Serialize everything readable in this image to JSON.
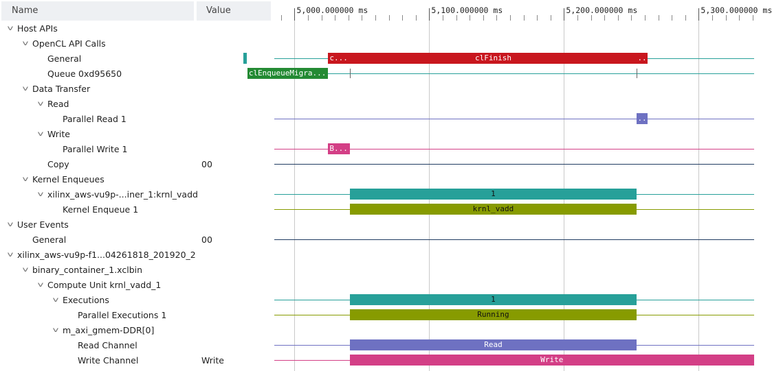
{
  "header": {
    "name_label": "Name",
    "value_label": "Value"
  },
  "colors": {
    "red": "#c8161e",
    "green": "#238a33",
    "teal": "#27a099",
    "olive": "#879b00",
    "blue": "#6e71c2",
    "pink": "#d33f86",
    "navy": "#1f3a60",
    "grid": "#c9c9c9"
  },
  "tree": [
    {
      "label": "Host APIs",
      "value": "",
      "expanded": true
    },
    {
      "label": "OpenCL API Calls",
      "value": "",
      "expanded": true
    },
    {
      "label": "General",
      "value": ""
    },
    {
      "label": "Queue 0xd95650",
      "value": ""
    },
    {
      "label": "Data Transfer",
      "value": "",
      "expanded": true
    },
    {
      "label": "Read",
      "value": "",
      "expanded": true
    },
    {
      "label": "Parallel Read 1",
      "value": ""
    },
    {
      "label": "Write",
      "value": "",
      "expanded": true
    },
    {
      "label": "Parallel Write 1",
      "value": ""
    },
    {
      "label": "Copy",
      "value": "00"
    },
    {
      "label": "Kernel Enqueues",
      "value": "",
      "expanded": true
    },
    {
      "label": "xilinx_aws-vu9p-...iner_1:krnl_vadd",
      "value": "",
      "expanded": true
    },
    {
      "label": "Kernel Enqueue 1",
      "value": ""
    },
    {
      "label": "User Events",
      "value": "",
      "expanded": true
    },
    {
      "label": "General",
      "value": "00"
    },
    {
      "label": "xilinx_aws-vu9p-f1...04261818_201920_2",
      "value": "",
      "expanded": true
    },
    {
      "label": "binary_container_1.xclbin",
      "value": "",
      "expanded": true
    },
    {
      "label": "Compute Unit krnl_vadd_1",
      "value": "",
      "expanded": true
    },
    {
      "label": "Executions",
      "value": "",
      "expanded": true
    },
    {
      "label": "Parallel Executions 1",
      "value": ""
    },
    {
      "label": "m_axi_gmem-DDR[0]",
      "value": "",
      "expanded": true
    },
    {
      "label": "Read Channel",
      "value": ""
    },
    {
      "label": "Write Channel",
      "value": "Write"
    }
  ],
  "timeline": {
    "ticks": [
      "5,000.000000 ms",
      "5,100.000000 ms",
      "5,200.000000 ms",
      "5,300.000000 ms"
    ],
    "tracks": [
      {
        "row": 2,
        "color": "teal"
      },
      {
        "row": 3,
        "color": "teal"
      },
      {
        "row": 6,
        "color": "blue"
      },
      {
        "row": 8,
        "color": "pink"
      },
      {
        "row": 9,
        "color": "navy"
      },
      {
        "row": 11,
        "color": "teal"
      },
      {
        "row": 12,
        "color": "olive"
      },
      {
        "row": 14,
        "color": "navy"
      },
      {
        "row": 18,
        "color": "teal"
      },
      {
        "row": 19,
        "color": "olive"
      },
      {
        "row": 21,
        "color": "blue"
      },
      {
        "row": 22,
        "color": "pink"
      }
    ],
    "events": [
      {
        "name": "general-api-small-bar",
        "row": 2,
        "start": 4962,
        "end": 4964.5,
        "color": "teal",
        "label": ""
      },
      {
        "name": "general-api-short-bar",
        "row": 2,
        "start": 5025,
        "end": 5041,
        "color": "red",
        "label": "c...",
        "align": "left"
      },
      {
        "name": "clfinish-bar",
        "row": 2,
        "start": 5041,
        "end": 5254,
        "color": "red",
        "label": "clFinish"
      },
      {
        "name": "general-api-end-bar",
        "row": 2,
        "start": 5254,
        "end": 5262,
        "color": "red",
        "label": ".."
      },
      {
        "name": "clenqueuemigrate-bar",
        "row": 3,
        "start": 4965,
        "end": 5025,
        "color": "green",
        "label": "clEnqueueMigra...",
        "align": "left"
      },
      {
        "name": "parallel-read-bar",
        "row": 6,
        "start": 5254,
        "end": 5262,
        "color": "blue",
        "label": ".."
      },
      {
        "name": "parallel-write-bar",
        "row": 8,
        "start": 5025,
        "end": 5041,
        "color": "pink",
        "label": "B...",
        "align": "left"
      },
      {
        "name": "kernel-enqueue-top-bar",
        "row": 11,
        "start": 5041,
        "end": 5254,
        "color": "teal",
        "label": "1",
        "dark": true
      },
      {
        "name": "kernel-enqueue-bar",
        "row": 12,
        "start": 5041,
        "end": 5254,
        "color": "olive",
        "label": "krnl_vadd",
        "dark": true
      },
      {
        "name": "executions-bar",
        "row": 18,
        "start": 5041,
        "end": 5254,
        "color": "teal",
        "label": "1",
        "dark": true
      },
      {
        "name": "parallel-executions-bar",
        "row": 19,
        "start": 5041,
        "end": 5254,
        "color": "olive",
        "label": "Running",
        "dark": true
      },
      {
        "name": "read-channel-bar",
        "row": 21,
        "start": 5041,
        "end": 5254,
        "color": "blue",
        "label": "Read"
      },
      {
        "name": "write-channel-bar",
        "row": 22,
        "start": 5041,
        "end": 5355,
        "color": "pink",
        "label": "Write"
      }
    ],
    "markers": [
      {
        "row": 3,
        "t": 5041
      },
      {
        "row": 3,
        "t": 5254
      }
    ]
  }
}
